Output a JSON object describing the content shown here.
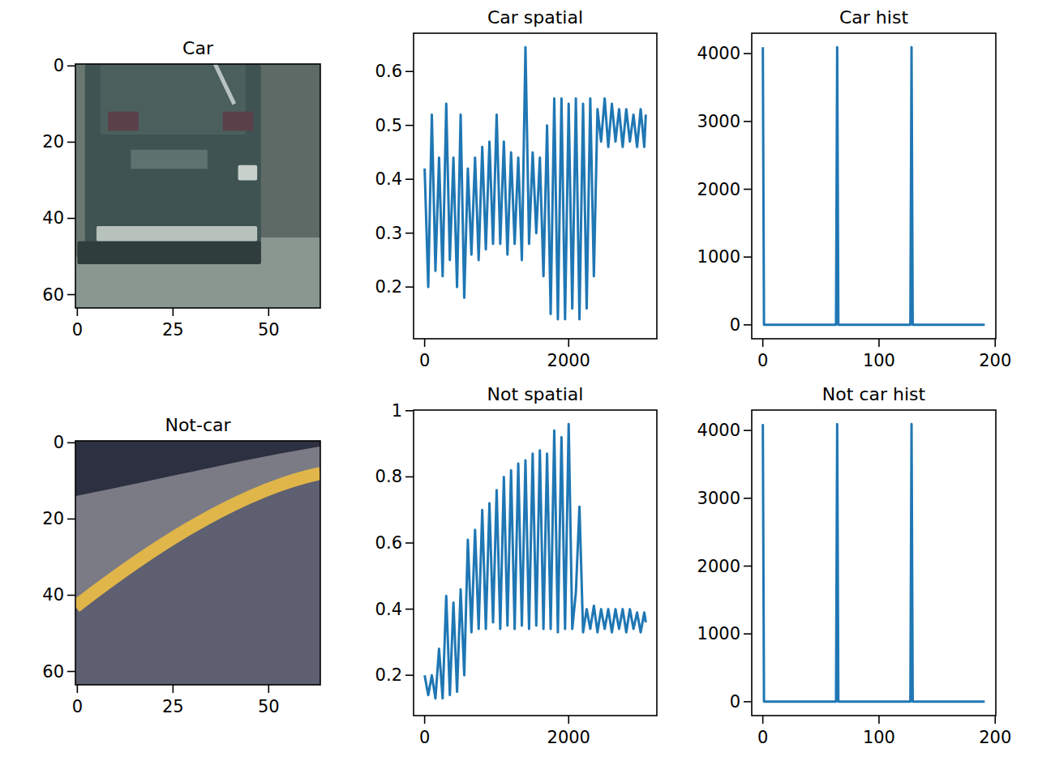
{
  "chart_data": [
    {
      "type": "image",
      "title": "Car",
      "xlim": [
        -0.5,
        63.5
      ],
      "ylim": [
        63.5,
        -0.5
      ],
      "xticks": [
        0,
        25,
        50
      ],
      "yticks": [
        0,
        20,
        40,
        60
      ]
    },
    {
      "type": "line",
      "title": "Car spatial",
      "color": "#1f77b4",
      "xlim": [
        -153.6,
        3224.6
      ],
      "ylim": [
        0.104,
        0.671
      ],
      "xticks": [
        0,
        2000
      ],
      "yticks": [
        0.2,
        0.3,
        0.4,
        0.5,
        0.6
      ],
      "x": [
        0,
        50,
        100,
        150,
        200,
        250,
        300,
        350,
        400,
        450,
        500,
        550,
        600,
        650,
        700,
        750,
        800,
        850,
        900,
        950,
        1000,
        1050,
        1100,
        1150,
        1200,
        1250,
        1300,
        1350,
        1400,
        1450,
        1500,
        1550,
        1600,
        1650,
        1700,
        1750,
        1800,
        1850,
        1900,
        1950,
        2000,
        2050,
        2100,
        2150,
        2200,
        2250,
        2300,
        2350,
        2400,
        2450,
        2500,
        2550,
        2600,
        2650,
        2700,
        2750,
        2800,
        2850,
        2900,
        2950,
        3000,
        3050,
        3071
      ],
      "values": [
        0.42,
        0.2,
        0.52,
        0.23,
        0.44,
        0.22,
        0.54,
        0.25,
        0.44,
        0.2,
        0.52,
        0.18,
        0.42,
        0.26,
        0.44,
        0.25,
        0.46,
        0.27,
        0.47,
        0.28,
        0.52,
        0.28,
        0.47,
        0.26,
        0.45,
        0.28,
        0.44,
        0.25,
        0.645,
        0.28,
        0.45,
        0.3,
        0.44,
        0.22,
        0.5,
        0.15,
        0.55,
        0.14,
        0.55,
        0.14,
        0.54,
        0.16,
        0.55,
        0.14,
        0.54,
        0.16,
        0.55,
        0.22,
        0.53,
        0.47,
        0.55,
        0.46,
        0.54,
        0.47,
        0.53,
        0.46,
        0.53,
        0.47,
        0.52,
        0.46,
        0.53,
        0.46,
        0.52
      ]
    },
    {
      "type": "line",
      "title": "Car hist",
      "color": "#1f77b4",
      "xlim": [
        -9.55,
        200.55
      ],
      "ylim": [
        -204.8,
        4300.8
      ],
      "xticks": [
        0,
        100,
        200
      ],
      "yticks": [
        0,
        1000,
        2000,
        3000,
        4000
      ],
      "x": [
        0,
        1,
        63,
        64,
        65,
        127,
        128,
        129,
        191
      ],
      "values": [
        4096,
        0,
        0,
        4096,
        0,
        0,
        4096,
        0,
        0
      ]
    },
    {
      "type": "image",
      "title": "Not-car",
      "xlim": [
        -0.5,
        63.5
      ],
      "ylim": [
        63.5,
        -0.5
      ],
      "xticks": [
        0,
        25,
        50
      ],
      "yticks": [
        0,
        20,
        40,
        60
      ]
    },
    {
      "type": "line",
      "title": "Not spatial",
      "color": "#1f77b4",
      "xlim": [
        -153.6,
        3224.6
      ],
      "ylim": [
        0.078,
        1.002
      ],
      "xticks": [
        0,
        2000
      ],
      "yticks": [
        0.2,
        0.4,
        0.6,
        0.8,
        1.0
      ],
      "x": [
        0,
        50,
        100,
        150,
        200,
        250,
        300,
        350,
        400,
        450,
        500,
        550,
        600,
        650,
        700,
        750,
        800,
        850,
        900,
        950,
        1000,
        1050,
        1100,
        1150,
        1200,
        1250,
        1300,
        1350,
        1400,
        1450,
        1500,
        1550,
        1600,
        1650,
        1700,
        1750,
        1800,
        1850,
        1900,
        1950,
        2000,
        2050,
        2100,
        2150,
        2200,
        2250,
        2300,
        2350,
        2400,
        2450,
        2500,
        2550,
        2600,
        2650,
        2700,
        2750,
        2800,
        2850,
        2900,
        2950,
        3000,
        3050,
        3071
      ],
      "values": [
        0.2,
        0.14,
        0.2,
        0.13,
        0.28,
        0.13,
        0.44,
        0.14,
        0.42,
        0.15,
        0.46,
        0.2,
        0.61,
        0.33,
        0.64,
        0.34,
        0.7,
        0.34,
        0.72,
        0.36,
        0.76,
        0.34,
        0.8,
        0.35,
        0.82,
        0.34,
        0.84,
        0.35,
        0.85,
        0.34,
        0.87,
        0.35,
        0.88,
        0.34,
        0.87,
        0.34,
        0.94,
        0.33,
        0.92,
        0.34,
        0.96,
        0.34,
        0.45,
        0.71,
        0.33,
        0.4,
        0.34,
        0.41,
        0.33,
        0.4,
        0.34,
        0.4,
        0.33,
        0.4,
        0.34,
        0.4,
        0.33,
        0.4,
        0.34,
        0.39,
        0.33,
        0.39,
        0.36
      ]
    },
    {
      "type": "line",
      "title": "Not car hist",
      "color": "#1f77b4",
      "xlim": [
        -9.55,
        200.55
      ],
      "ylim": [
        -204.8,
        4300.8
      ],
      "xticks": [
        0,
        100,
        200
      ],
      "yticks": [
        0,
        1000,
        2000,
        3000,
        4000
      ],
      "x": [
        0,
        1,
        63,
        64,
        65,
        127,
        128,
        129,
        191
      ],
      "values": [
        4096,
        0,
        0,
        4096,
        0,
        0,
        4096,
        0,
        0
      ]
    }
  ]
}
